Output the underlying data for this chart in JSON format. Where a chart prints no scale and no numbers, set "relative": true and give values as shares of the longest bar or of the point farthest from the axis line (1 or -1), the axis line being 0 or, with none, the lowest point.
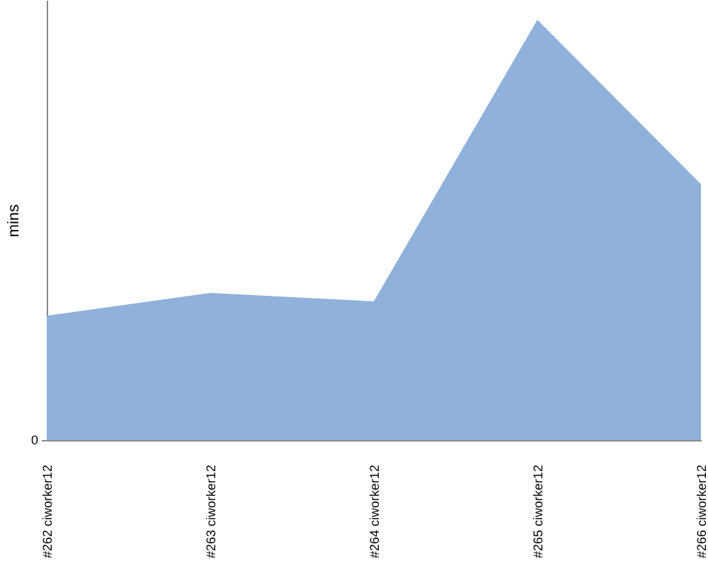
{
  "chart_data": {
    "type": "area",
    "ylabel": "mins",
    "categories": [
      "#262 ciworker12",
      "#263 ciworker12",
      "#264 ciworker12",
      "#265 ciworker12",
      "#266 ciworker12"
    ],
    "values": [
      0.296,
      0.35,
      0.33,
      1,
      0.609
    ],
    "color": "#8fb1da",
    "relative": true,
    "grid": false,
    "annotations": [
      "0"
    ]
  }
}
